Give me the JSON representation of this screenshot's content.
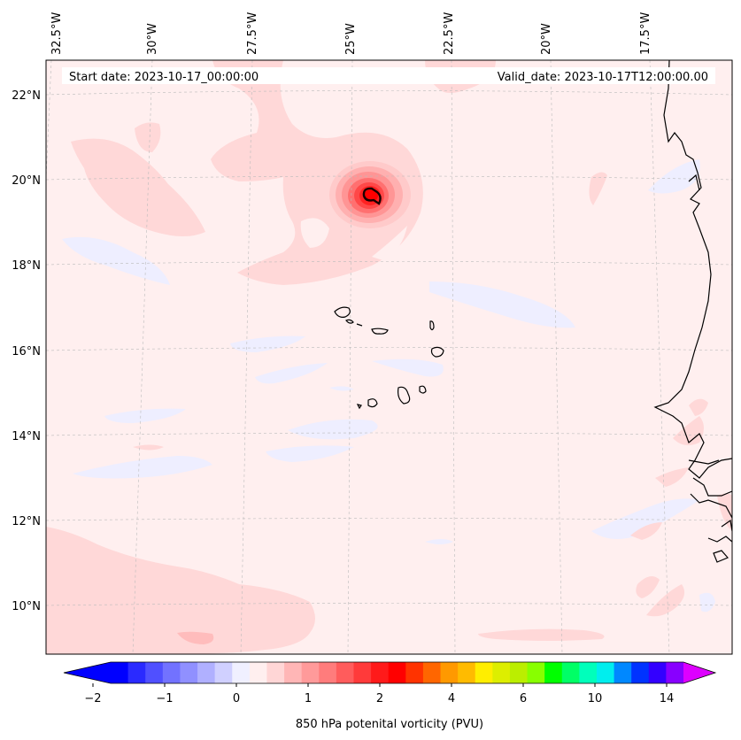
{
  "header": {
    "start_date": "Start date: 2023-10-17_00:00:00",
    "valid_date": "Valid_date: 2023-10-17T12:00:00.00"
  },
  "longitude_labels": [
    "32.5°W",
    "30°W",
    "27.5°W",
    "25°W",
    "22.5°W",
    "20°W",
    "17.5°W"
  ],
  "latitude_labels": [
    "22°N",
    "20°N",
    "18°N",
    "16°N",
    "14°N",
    "12°N",
    "10°N"
  ],
  "colorbar": {
    "label": "850 hPa potenital vorticity (PVU)",
    "tick_labels": [
      "−2",
      "−1",
      "0",
      "1",
      "2",
      "4",
      "6",
      "10",
      "14"
    ],
    "colors": [
      "#0000ff",
      "#2a2aff",
      "#5050ff",
      "#7272ff",
      "#9090ff",
      "#b0b0ff",
      "#d0d0ff",
      "#f0f0ff",
      "#ffefef",
      "#ffd6d6",
      "#ffb6b6",
      "#ff9a9a",
      "#ff7c7c",
      "#ff5c5c",
      "#ff3a3a",
      "#ff1a1a",
      "#ff0000",
      "#ff3300",
      "#ff6600",
      "#ff9900",
      "#ffbb00",
      "#ffee00",
      "#ddee00",
      "#bbee00",
      "#88ff00",
      "#00ff00",
      "#00ff66",
      "#00ffbb",
      "#00eeee",
      "#0088ff",
      "#0033ff",
      "#3300ff",
      "#8800ff"
    ],
    "over_color": "#dd00ff",
    "under_color": "#0000ff"
  }
}
